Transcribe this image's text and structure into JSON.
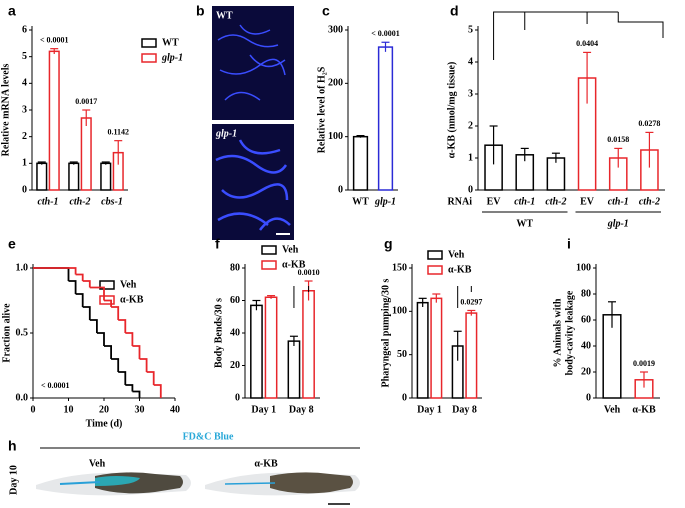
{
  "chart_data": [
    {
      "panel": "a",
      "type": "bar",
      "ylabel": "Relative mRNA levels",
      "categories": [
        "cth-1",
        "cth-2",
        "cbs-1"
      ],
      "series": [
        {
          "name": "WT",
          "color": "#000000",
          "values": [
            1,
            1,
            1
          ],
          "errors": [
            0.05,
            0.05,
            0.05
          ]
        },
        {
          "name": "glp-1",
          "color": "#e8262b",
          "values": [
            5.2,
            2.7,
            1.4
          ],
          "errors": [
            0.1,
            0.3,
            0.45
          ]
        }
      ],
      "ylim": [
        0,
        6
      ],
      "yticks": [
        0,
        1,
        2,
        3,
        4,
        5,
        6
      ],
      "annotations": [
        "< 0.0001",
        "0.0017",
        "0.1142"
      ]
    },
    {
      "panel": "c",
      "type": "bar",
      "ylabel": "Relative level of H₂S",
      "categories": [
        "WT",
        "glp-1"
      ],
      "values": [
        100,
        268
      ],
      "errors": [
        2,
        9
      ],
      "colors": [
        "#000000",
        "#2b2bd6"
      ],
      "ylim": [
        0,
        300
      ],
      "yticks": [
        0,
        100,
        200,
        300
      ],
      "annotations": [
        "< 0.0001"
      ]
    },
    {
      "panel": "d",
      "type": "bar",
      "ylabel": "α-KB (nmol/mg tissue)",
      "row_label": "RNAi",
      "categories": [
        "EV",
        "cth-1",
        "cth-2",
        "EV",
        "cth-1",
        "cth-2"
      ],
      "groups": [
        "WT",
        "glp-1"
      ],
      "values": [
        1.4,
        1.1,
        1.0,
        3.5,
        1.0,
        1.25
      ],
      "errors": [
        0.6,
        0.2,
        0.15,
        0.8,
        0.3,
        0.55
      ],
      "colors": [
        "#000000",
        "#000000",
        "#000000",
        "#e8262b",
        "#e8262b",
        "#e8262b"
      ],
      "ylim": [
        0,
        5
      ],
      "yticks": [
        0,
        1,
        2,
        3,
        4,
        5
      ],
      "annotations": [
        "0.0404",
        "0.0158",
        "0.0278"
      ]
    },
    {
      "panel": "e",
      "type": "line",
      "step": true,
      "xlabel": "Time (d)",
      "ylabel": "Fraction alive",
      "series": [
        {
          "name": "Veh",
          "color": "#000000",
          "x": [
            0,
            10,
            12,
            14,
            16,
            18,
            20,
            22,
            24,
            26,
            28,
            30
          ],
          "values": [
            1,
            0.9,
            0.8,
            0.7,
            0.6,
            0.5,
            0.4,
            0.3,
            0.2,
            0.1,
            0.05,
            0
          ]
        },
        {
          "name": "α-KB",
          "color": "#e8262b",
          "x": [
            0,
            12,
            14,
            16,
            20,
            22,
            24,
            26,
            28,
            30,
            32,
            34,
            36
          ],
          "values": [
            1,
            0.95,
            0.9,
            0.85,
            0.75,
            0.7,
            0.6,
            0.5,
            0.4,
            0.3,
            0.2,
            0.1,
            0
          ]
        }
      ],
      "xlim": [
        0,
        40
      ],
      "xticks": [
        0,
        10,
        20,
        30,
        40
      ],
      "ylim": [
        0,
        1
      ],
      "yticks": [
        {
          "value": 0,
          "label": "0.0"
        },
        {
          "value": 0.5,
          "label": "0.5"
        },
        {
          "value": 1,
          "label": "1.0"
        }
      ],
      "annotations": [
        "< 0.0001"
      ]
    },
    {
      "panel": "f",
      "type": "bar",
      "ylabel": "Body Bends/30 s",
      "categories": [
        "Day 1",
        "Day 8"
      ],
      "series": [
        {
          "name": "Veh",
          "color": "#000000",
          "values": [
            57,
            35
          ],
          "errors": [
            3,
            3
          ]
        },
        {
          "name": "α-KB",
          "color": "#e8262b",
          "values": [
            62,
            66
          ],
          "errors": [
            1,
            6
          ]
        }
      ],
      "ylim": [
        0,
        80
      ],
      "yticks": [
        0,
        20,
        40,
        60,
        80
      ],
      "annotations": [
        "0.0010"
      ]
    },
    {
      "panel": "g",
      "type": "bar",
      "ylabel": "Pharyngeal pumping/30 s",
      "categories": [
        "Day 1",
        "Day 8"
      ],
      "series": [
        {
          "name": "Veh",
          "color": "#000000",
          "values": [
            110,
            60
          ],
          "errors": [
            5,
            17
          ]
        },
        {
          "name": "α-KB",
          "color": "#e8262b",
          "values": [
            115,
            98
          ],
          "errors": [
            5,
            3
          ]
        }
      ],
      "ylim": [
        0,
        150
      ],
      "yticks": [
        0,
        50,
        100,
        150
      ],
      "annotations": [
        "0.0297"
      ]
    },
    {
      "panel": "i",
      "type": "bar",
      "ylabel": [
        "% Animals with",
        "body-cavity leakage"
      ],
      "categories": [
        "Veh",
        "α-KB"
      ],
      "values": [
        64,
        14
      ],
      "errors": [
        10,
        6
      ],
      "colors": [
        "#000000",
        "#e8262b"
      ],
      "ylim": [
        0,
        100
      ],
      "yticks": [
        0,
        20,
        40,
        60,
        80,
        100
      ],
      "annotations": [
        "0.0019"
      ]
    }
  ],
  "images": [
    {
      "panel": "b",
      "labels": [
        "WT",
        "glp-1"
      ]
    },
    {
      "panel": "h",
      "title": "FD&C Blue",
      "labels": [
        "Veh",
        "α-KB"
      ],
      "row_label": "Day 10"
    }
  ]
}
